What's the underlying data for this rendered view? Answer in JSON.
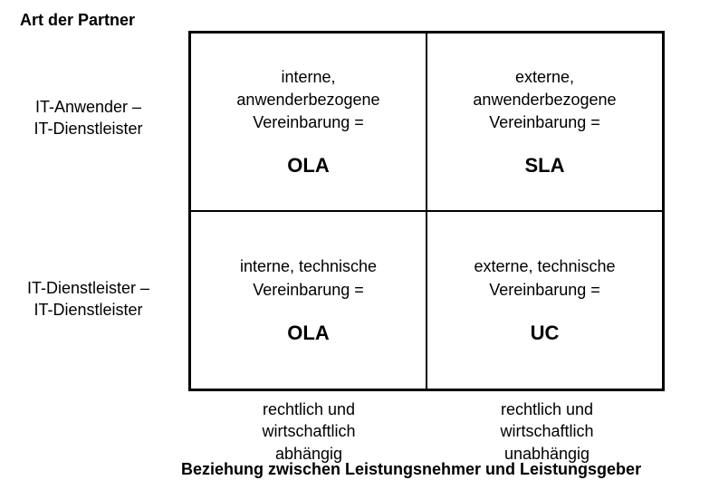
{
  "matrix": {
    "type": "2x2-matrix",
    "background_color": "#ffffff",
    "border_color": "#000000",
    "text_color": "#000000",
    "title_fontsize": 18,
    "label_fontsize": 18,
    "desc_fontsize": 18,
    "abbr_fontsize": 22,
    "top_axis_title": "Art der  Partner",
    "bottom_axis_title": "Beziehung zwischen Leistungsnehmer und Leistungsgeber",
    "row_labels": [
      {
        "line1": "IT-Anwender  –",
        "line2": "IT-Dienstleister"
      },
      {
        "line1": "IT-Dienstleister –",
        "line2": "IT-Dienstleister"
      }
    ],
    "col_labels": [
      {
        "line1": "rechtlich und",
        "line2": "wirtschaftlich",
        "line3": "abhängig"
      },
      {
        "line1": "rechtlich und",
        "line2": "wirtschaftlich",
        "line3": "unabhängig"
      }
    ],
    "cells": [
      {
        "line1": "interne,",
        "line2": "anwenderbezogene",
        "line3": "Vereinbarung =",
        "abbr": "OLA"
      },
      {
        "line1": "externe,",
        "line2": "anwenderbezogene",
        "line3": "Vereinbarung =",
        "abbr": "SLA"
      },
      {
        "line1": "interne, technische",
        "line2": "Vereinbarung =",
        "line3": "",
        "abbr": "OLA"
      },
      {
        "line1": "externe, technische",
        "line2": "Vereinbarung =",
        "line3": "",
        "abbr": "UC"
      }
    ]
  }
}
